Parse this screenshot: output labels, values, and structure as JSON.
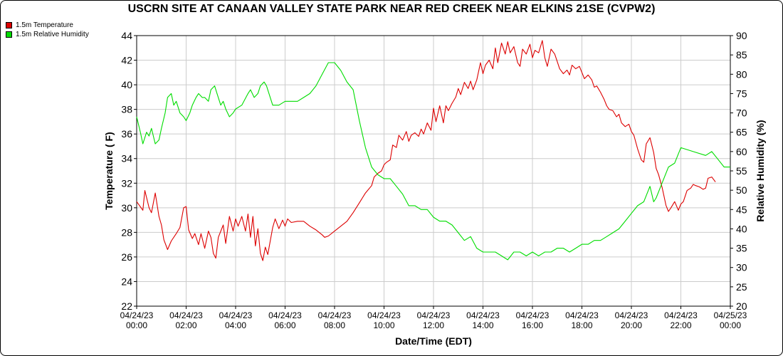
{
  "chart_data": {
    "type": "line",
    "title": "USCRN SITE AT CANAAN VALLEY STATE PARK NEAR RED CREEK NEAR ELKINS 21SE (CVPW2)",
    "xlabel": "Date/Time (EDT)",
    "ylabel_left": "Temperature ( F)",
    "ylabel_right": "Relative Humidity (%)",
    "x_ticks": [
      [
        "04/24/23",
        "00:00"
      ],
      [
        "04/24/23",
        "02:00"
      ],
      [
        "04/24/23",
        "04:00"
      ],
      [
        "04/24/23",
        "06:00"
      ],
      [
        "04/24/23",
        "08:00"
      ],
      [
        "04/24/23",
        "10:00"
      ],
      [
        "04/24/23",
        "12:00"
      ],
      [
        "04/24/23",
        "14:00"
      ],
      [
        "04/24/23",
        "16:00"
      ],
      [
        "04/24/23",
        "18:00"
      ],
      [
        "04/24/23",
        "20:00"
      ],
      [
        "04/24/23",
        "22:00"
      ],
      [
        "04/25/23",
        "00:00"
      ]
    ],
    "xlim": [
      0,
      24
    ],
    "ylim_left": [
      22,
      44
    ],
    "yticks_left": [
      22,
      24,
      26,
      28,
      30,
      32,
      34,
      36,
      38,
      40,
      42,
      44
    ],
    "ylim_right": [
      20,
      90
    ],
    "yticks_right": [
      20,
      25,
      30,
      35,
      40,
      45,
      50,
      55,
      60,
      65,
      70,
      75,
      80,
      85,
      90
    ],
    "grid": true,
    "legend_position": "top-left",
    "series": [
      {
        "name": "1.5m Temperature",
        "color": "#dd0000",
        "axis": "left",
        "points": [
          [
            0.0,
            30.5
          ],
          [
            0.25,
            29.8
          ],
          [
            0.33,
            31.4
          ],
          [
            0.5,
            30.0
          ],
          [
            0.6,
            29.6
          ],
          [
            0.75,
            31.2
          ],
          [
            0.9,
            29.3
          ],
          [
            1.0,
            28.6
          ],
          [
            1.1,
            27.4
          ],
          [
            1.25,
            26.6
          ],
          [
            1.4,
            27.3
          ],
          [
            1.6,
            27.9
          ],
          [
            1.75,
            28.4
          ],
          [
            1.9,
            30.0
          ],
          [
            2.0,
            30.1
          ],
          [
            2.1,
            28.2
          ],
          [
            2.25,
            27.5
          ],
          [
            2.35,
            27.9
          ],
          [
            2.5,
            27.0
          ],
          [
            2.6,
            27.9
          ],
          [
            2.75,
            26.7
          ],
          [
            2.9,
            28.1
          ],
          [
            3.0,
            27.6
          ],
          [
            3.1,
            26.3
          ],
          [
            3.2,
            25.9
          ],
          [
            3.3,
            27.6
          ],
          [
            3.5,
            28.6
          ],
          [
            3.6,
            27.1
          ],
          [
            3.75,
            29.3
          ],
          [
            3.9,
            28.1
          ],
          [
            4.0,
            29.1
          ],
          [
            4.1,
            28.5
          ],
          [
            4.25,
            29.3
          ],
          [
            4.4,
            28.1
          ],
          [
            4.5,
            29.5
          ],
          [
            4.6,
            27.6
          ],
          [
            4.7,
            29.3
          ],
          [
            4.8,
            26.9
          ],
          [
            4.9,
            28.3
          ],
          [
            5.0,
            26.3
          ],
          [
            5.1,
            25.7
          ],
          [
            5.2,
            26.8
          ],
          [
            5.3,
            26.2
          ],
          [
            5.5,
            28.4
          ],
          [
            5.6,
            29.1
          ],
          [
            5.75,
            28.3
          ],
          [
            5.9,
            29.0
          ],
          [
            6.0,
            28.5
          ],
          [
            6.1,
            29.1
          ],
          [
            6.25,
            28.8
          ],
          [
            6.5,
            28.9
          ],
          [
            6.75,
            28.9
          ],
          [
            7.0,
            28.5
          ],
          [
            7.25,
            28.2
          ],
          [
            7.5,
            27.8
          ],
          [
            7.6,
            27.6
          ],
          [
            7.75,
            27.7
          ],
          [
            8.0,
            28.1
          ],
          [
            8.25,
            28.5
          ],
          [
            8.5,
            28.9
          ],
          [
            8.75,
            29.6
          ],
          [
            9.0,
            30.4
          ],
          [
            9.25,
            31.2
          ],
          [
            9.5,
            31.8
          ],
          [
            9.6,
            32.5
          ],
          [
            9.75,
            32.8
          ],
          [
            9.9,
            33.0
          ],
          [
            10.0,
            33.5
          ],
          [
            10.1,
            33.7
          ],
          [
            10.25,
            33.9
          ],
          [
            10.35,
            35.1
          ],
          [
            10.5,
            34.9
          ],
          [
            10.6,
            35.9
          ],
          [
            10.75,
            35.5
          ],
          [
            10.9,
            36.2
          ],
          [
            11.0,
            35.4
          ],
          [
            11.1,
            35.9
          ],
          [
            11.25,
            36.1
          ],
          [
            11.4,
            35.8
          ],
          [
            11.5,
            36.4
          ],
          [
            11.6,
            36.0
          ],
          [
            11.75,
            36.9
          ],
          [
            11.9,
            36.3
          ],
          [
            12.0,
            38.1
          ],
          [
            12.1,
            37.0
          ],
          [
            12.25,
            38.3
          ],
          [
            12.4,
            36.9
          ],
          [
            12.5,
            38.3
          ],
          [
            12.6,
            37.9
          ],
          [
            12.75,
            38.5
          ],
          [
            12.9,
            39.0
          ],
          [
            13.0,
            39.7
          ],
          [
            13.1,
            39.2
          ],
          [
            13.25,
            40.2
          ],
          [
            13.4,
            39.7
          ],
          [
            13.5,
            40.3
          ],
          [
            13.6,
            39.6
          ],
          [
            13.75,
            40.4
          ],
          [
            13.9,
            41.8
          ],
          [
            14.0,
            40.9
          ],
          [
            14.1,
            41.6
          ],
          [
            14.25,
            42.0
          ],
          [
            14.4,
            41.3
          ],
          [
            14.5,
            43.0
          ],
          [
            14.6,
            41.8
          ],
          [
            14.75,
            43.4
          ],
          [
            14.9,
            42.5
          ],
          [
            15.0,
            43.5
          ],
          [
            15.1,
            42.6
          ],
          [
            15.25,
            43.1
          ],
          [
            15.4,
            41.8
          ],
          [
            15.5,
            41.5
          ],
          [
            15.6,
            42.9
          ],
          [
            15.75,
            42.5
          ],
          [
            15.9,
            43.3
          ],
          [
            16.0,
            42.2
          ],
          [
            16.1,
            42.8
          ],
          [
            16.25,
            42.6
          ],
          [
            16.4,
            43.6
          ],
          [
            16.5,
            42.2
          ],
          [
            16.6,
            41.5
          ],
          [
            16.75,
            42.9
          ],
          [
            16.9,
            42.5
          ],
          [
            17.0,
            41.9
          ],
          [
            17.1,
            41.3
          ],
          [
            17.25,
            40.9
          ],
          [
            17.4,
            41.2
          ],
          [
            17.5,
            40.8
          ],
          [
            17.6,
            41.6
          ],
          [
            17.75,
            41.3
          ],
          [
            17.9,
            41.5
          ],
          [
            18.0,
            41.0
          ],
          [
            18.1,
            40.5
          ],
          [
            18.25,
            40.8
          ],
          [
            18.4,
            40.4
          ],
          [
            18.5,
            39.8
          ],
          [
            18.6,
            39.9
          ],
          [
            18.75,
            39.4
          ],
          [
            18.9,
            38.8
          ],
          [
            19.0,
            38.3
          ],
          [
            19.1,
            38.0
          ],
          [
            19.25,
            37.9
          ],
          [
            19.4,
            37.4
          ],
          [
            19.5,
            37.6
          ],
          [
            19.6,
            36.9
          ],
          [
            19.75,
            36.6
          ],
          [
            19.9,
            36.8
          ],
          [
            20.0,
            36.2
          ],
          [
            20.1,
            35.9
          ],
          [
            20.25,
            34.8
          ],
          [
            20.4,
            33.9
          ],
          [
            20.5,
            33.7
          ],
          [
            20.6,
            35.2
          ],
          [
            20.75,
            35.7
          ],
          [
            20.9,
            34.5
          ],
          [
            21.0,
            33.2
          ],
          [
            21.1,
            32.7
          ],
          [
            21.25,
            31.6
          ],
          [
            21.4,
            30.2
          ],
          [
            21.5,
            29.7
          ],
          [
            21.6,
            30.0
          ],
          [
            21.75,
            30.5
          ],
          [
            21.9,
            29.8
          ],
          [
            22.0,
            30.3
          ],
          [
            22.1,
            30.5
          ],
          [
            22.25,
            31.4
          ],
          [
            22.4,
            31.6
          ],
          [
            22.5,
            31.9
          ],
          [
            22.6,
            31.8
          ],
          [
            22.75,
            31.7
          ],
          [
            22.9,
            31.5
          ],
          [
            23.0,
            31.6
          ],
          [
            23.1,
            32.4
          ],
          [
            23.25,
            32.5
          ],
          [
            23.4,
            32.1
          ]
        ]
      },
      {
        "name": "1.5m Relative Humidity",
        "color": "#00dd00",
        "axis": "right",
        "points": [
          [
            0.0,
            69
          ],
          [
            0.15,
            65
          ],
          [
            0.25,
            62
          ],
          [
            0.4,
            65
          ],
          [
            0.5,
            64
          ],
          [
            0.6,
            66
          ],
          [
            0.75,
            62
          ],
          [
            0.9,
            63
          ],
          [
            1.0,
            66
          ],
          [
            1.15,
            70
          ],
          [
            1.25,
            74
          ],
          [
            1.4,
            75
          ],
          [
            1.5,
            72
          ],
          [
            1.6,
            73
          ],
          [
            1.75,
            70
          ],
          [
            1.9,
            69
          ],
          [
            2.0,
            68
          ],
          [
            2.15,
            70
          ],
          [
            2.25,
            72
          ],
          [
            2.4,
            74
          ],
          [
            2.5,
            75
          ],
          [
            2.65,
            74
          ],
          [
            2.75,
            74
          ],
          [
            2.9,
            73
          ],
          [
            3.0,
            76
          ],
          [
            3.15,
            77
          ],
          [
            3.25,
            75
          ],
          [
            3.4,
            72
          ],
          [
            3.5,
            73
          ],
          [
            3.6,
            71
          ],
          [
            3.75,
            69
          ],
          [
            3.9,
            70
          ],
          [
            4.0,
            71
          ],
          [
            4.25,
            72
          ],
          [
            4.5,
            75
          ],
          [
            4.6,
            76
          ],
          [
            4.75,
            74
          ],
          [
            4.9,
            75
          ],
          [
            5.0,
            77
          ],
          [
            5.15,
            78
          ],
          [
            5.25,
            77
          ],
          [
            5.5,
            72
          ],
          [
            5.75,
            72
          ],
          [
            6.0,
            73
          ],
          [
            6.25,
            73
          ],
          [
            6.5,
            73
          ],
          [
            6.75,
            74
          ],
          [
            7.0,
            75
          ],
          [
            7.25,
            77
          ],
          [
            7.5,
            80
          ],
          [
            7.75,
            83
          ],
          [
            8.0,
            83
          ],
          [
            8.25,
            81
          ],
          [
            8.5,
            78
          ],
          [
            8.75,
            76
          ],
          [
            9.0,
            68
          ],
          [
            9.25,
            61
          ],
          [
            9.5,
            56
          ],
          [
            9.75,
            54
          ],
          [
            10.0,
            53
          ],
          [
            10.25,
            53
          ],
          [
            10.5,
            51
          ],
          [
            10.75,
            49
          ],
          [
            11.0,
            46
          ],
          [
            11.25,
            46
          ],
          [
            11.5,
            45
          ],
          [
            11.75,
            45
          ],
          [
            12.0,
            43
          ],
          [
            12.25,
            42
          ],
          [
            12.5,
            42
          ],
          [
            12.75,
            41
          ],
          [
            13.0,
            39
          ],
          [
            13.25,
            37
          ],
          [
            13.5,
            38
          ],
          [
            13.75,
            35
          ],
          [
            14.0,
            34
          ],
          [
            14.25,
            34
          ],
          [
            14.5,
            34
          ],
          [
            14.75,
            33
          ],
          [
            15.0,
            32
          ],
          [
            15.25,
            34
          ],
          [
            15.5,
            34
          ],
          [
            15.75,
            33
          ],
          [
            16.0,
            34
          ],
          [
            16.25,
            33
          ],
          [
            16.5,
            34
          ],
          [
            16.75,
            34
          ],
          [
            17.0,
            35
          ],
          [
            17.25,
            35
          ],
          [
            17.5,
            34
          ],
          [
            17.75,
            35
          ],
          [
            18.0,
            36
          ],
          [
            18.25,
            36
          ],
          [
            18.5,
            37
          ],
          [
            18.75,
            37
          ],
          [
            19.0,
            38
          ],
          [
            19.25,
            39
          ],
          [
            19.5,
            40
          ],
          [
            19.75,
            42
          ],
          [
            20.0,
            44
          ],
          [
            20.25,
            46
          ],
          [
            20.5,
            47
          ],
          [
            20.75,
            51
          ],
          [
            20.9,
            47
          ],
          [
            21.0,
            48
          ],
          [
            21.25,
            52
          ],
          [
            21.5,
            56
          ],
          [
            21.75,
            57
          ],
          [
            22.0,
            61
          ],
          [
            22.5,
            60
          ],
          [
            23.0,
            59
          ],
          [
            23.25,
            60
          ],
          [
            23.5,
            58
          ],
          [
            23.75,
            56
          ],
          [
            24.0,
            56
          ]
        ]
      }
    ]
  }
}
